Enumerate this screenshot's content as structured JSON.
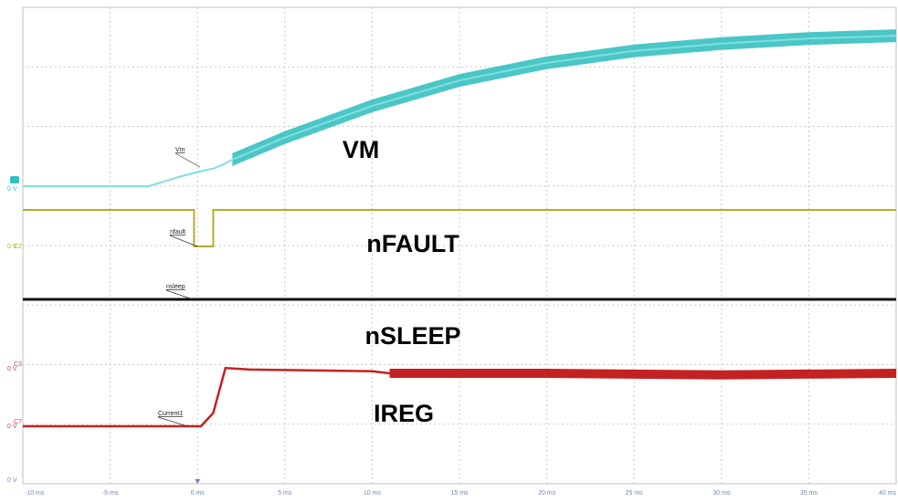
{
  "chart_data": {
    "type": "line",
    "x_unit": "ms",
    "xlim": [
      -10,
      40
    ],
    "x_tick_labels": [
      "-10 ms",
      "-5 ms",
      "0 ms",
      "5 ms",
      "10 ms",
      "15 ms",
      "20 ms",
      "25 ms",
      "30 ms",
      "35 ms",
      "40 ms"
    ],
    "grid": true,
    "grid_style": "dashed",
    "channel_markers": [
      {
        "text": "0 V",
        "color": "#2cc0c0"
      },
      {
        "text": "C2",
        "color": "#b5b028"
      },
      {
        "text": "0 V",
        "color": "#b5b028"
      },
      {
        "text": "C3",
        "color": "#c94848"
      },
      {
        "text": "0 V",
        "color": "#c94848"
      },
      {
        "text": "C7",
        "color": "#c94848"
      },
      {
        "text": "0 V",
        "color": "#c94848"
      },
      {
        "text": "0 V",
        "color": "#6f86b8"
      }
    ],
    "series": [
      {
        "name": "VM",
        "probe_label": "Vm",
        "color": "#2cbcbc",
        "x": [
          -10,
          -2.8,
          -1,
          0,
          1,
          1.5,
          2,
          5,
          10,
          15,
          20,
          25,
          30,
          35,
          40
        ],
        "y": [
          0,
          0,
          0.17,
          0.25,
          0.32,
          0.39,
          0.47,
          0.86,
          1.42,
          1.87,
          2.18,
          2.39,
          2.52,
          2.61,
          2.66
        ],
        "band_start_x": 1.6
      },
      {
        "name": "nFAULT",
        "probe_label": "nfault",
        "color": "#b3ad2a",
        "x": [
          -10,
          -0.2,
          -0.2,
          0.9,
          0.9,
          40
        ],
        "y": [
          1,
          1,
          0,
          0,
          1,
          1
        ]
      },
      {
        "name": "nSLEEP",
        "probe_label": "nsleep",
        "color": "#111111",
        "x": [
          -10,
          40
        ],
        "y": [
          0,
          0
        ]
      },
      {
        "name": "IREG",
        "probe_label": "Current1",
        "color": "#c42222",
        "x": [
          -10,
          0.2,
          0.9,
          1.6,
          3,
          10,
          11,
          20,
          30,
          40
        ],
        "y": [
          0,
          0,
          0.25,
          1.1,
          1.07,
          1.04,
          1.0,
          1.0,
          0.97,
          1.0
        ]
      }
    ]
  }
}
